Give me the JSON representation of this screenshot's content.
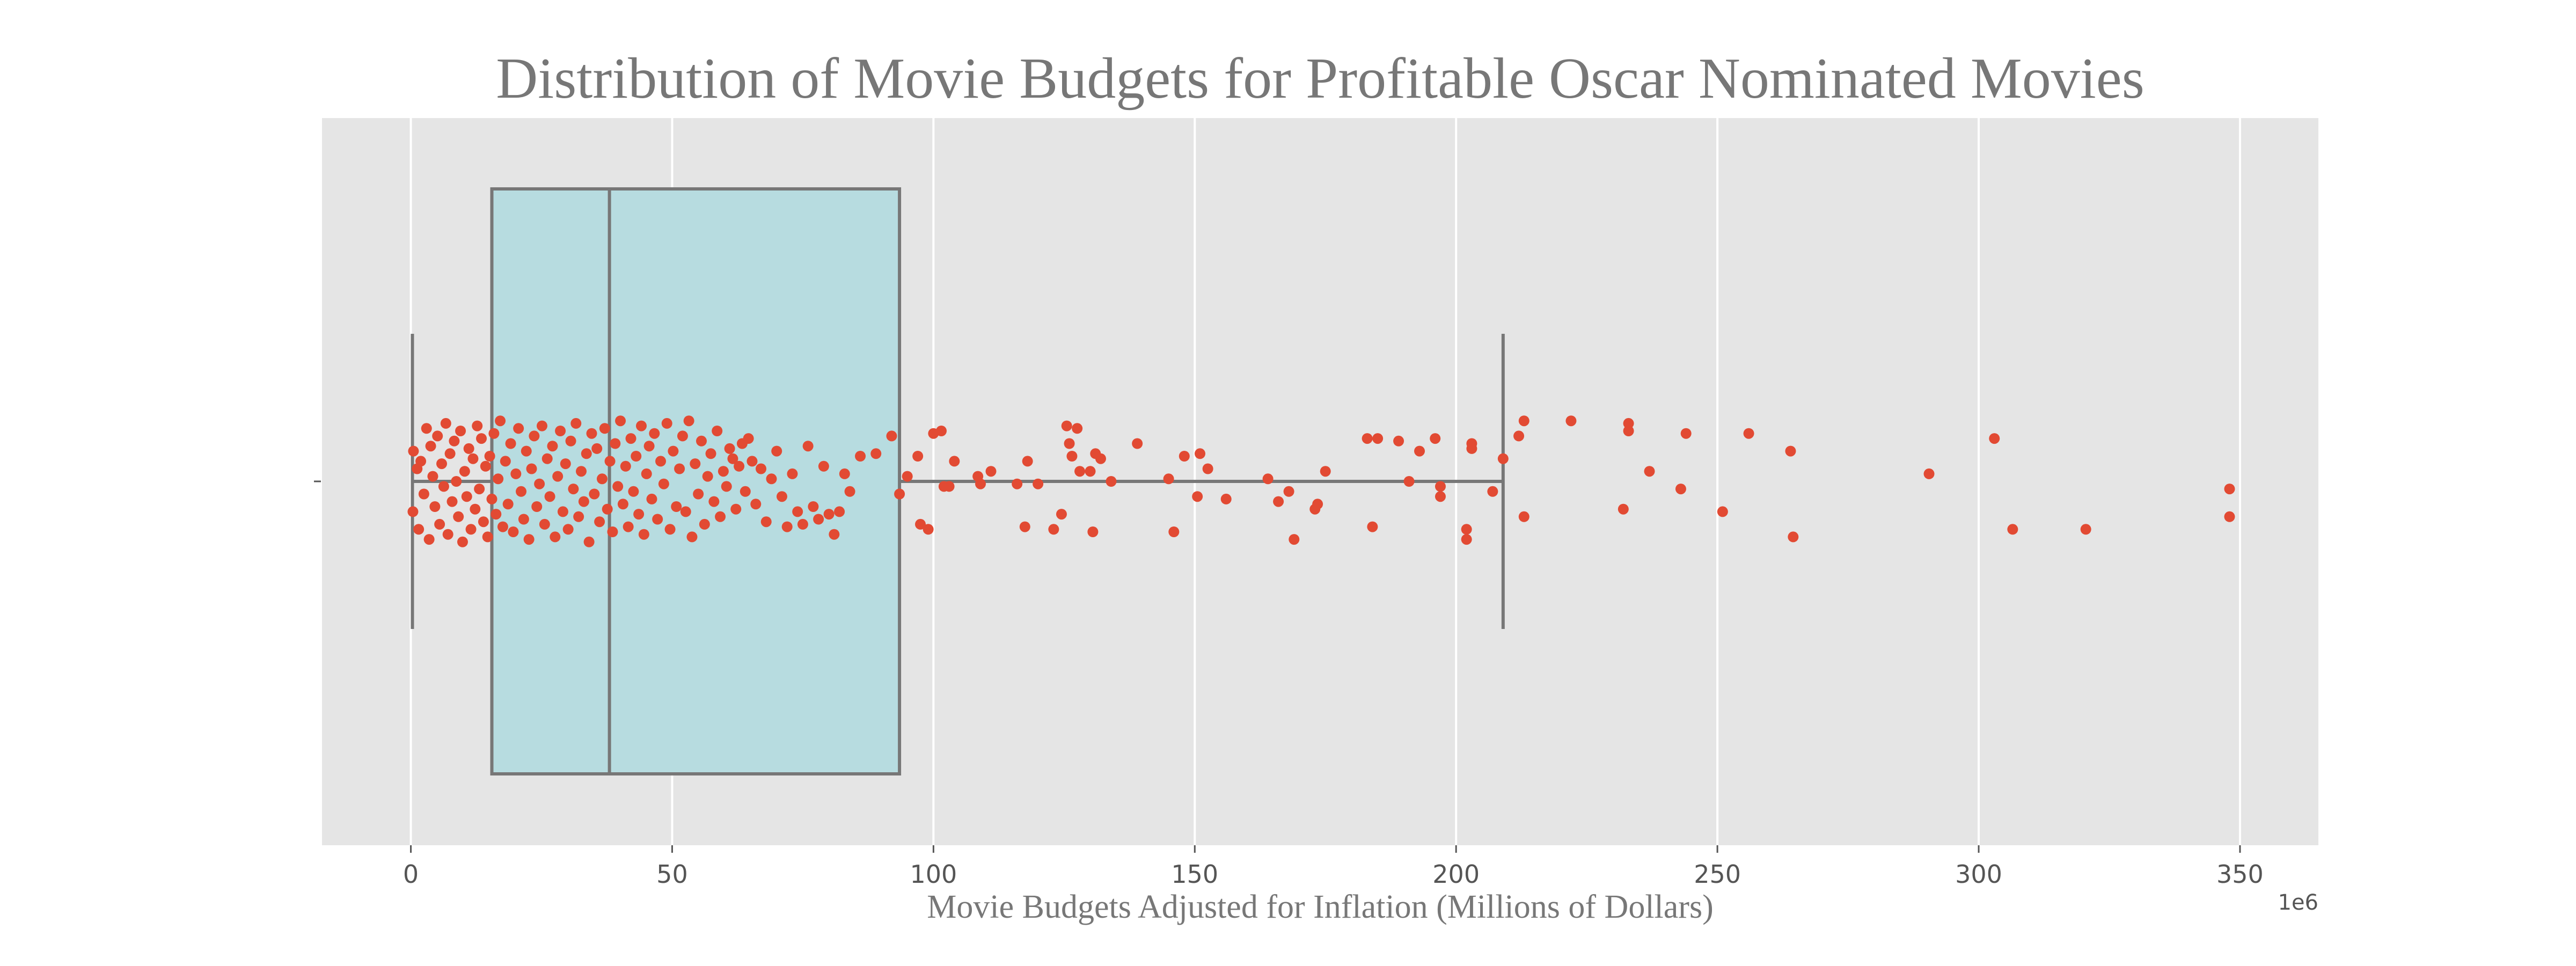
{
  "chart_data": {
    "type": "box",
    "title": "Distribution of Movie Budgets for Profitable Oscar Nominated Movies",
    "xlabel": "Movie Budgets Adjusted for Inflation (Millions of Dollars)",
    "ylabel": "",
    "offset_label": "1e6",
    "xlim": [
      -17,
      365
    ],
    "x_ticks": [
      0,
      50,
      100,
      150,
      200,
      250,
      300,
      350
    ],
    "x_tick_labels": [
      "0",
      "50",
      "100",
      "150",
      "200",
      "250",
      "300",
      "350"
    ],
    "grid": true,
    "box": {
      "whisker_low": 0.3,
      "q1": 15.5,
      "median": 38,
      "q3": 93.5,
      "whisker_high": 209
    },
    "points": [
      [
        0.4,
        -0.12
      ],
      [
        0.5,
        0.12
      ],
      [
        1.2,
        0.05
      ],
      [
        1.5,
        -0.19
      ],
      [
        1.9,
        0.08
      ],
      [
        2.5,
        -0.05
      ],
      [
        3,
        0.21
      ],
      [
        3.5,
        -0.23
      ],
      [
        3.8,
        0.14
      ],
      [
        4.2,
        0.02
      ],
      [
        4.6,
        -0.1
      ],
      [
        5.1,
        0.18
      ],
      [
        5.5,
        -0.17
      ],
      [
        5.9,
        0.07
      ],
      [
        6.3,
        -0.02
      ],
      [
        6.7,
        0.23
      ],
      [
        7.1,
        -0.21
      ],
      [
        7.5,
        0.11
      ],
      [
        7.9,
        -0.08
      ],
      [
        8.3,
        0.16
      ],
      [
        8.7,
        0.0
      ],
      [
        9.1,
        -0.14
      ],
      [
        9.5,
        0.2
      ],
      [
        9.9,
        -0.24
      ],
      [
        10.3,
        0.04
      ],
      [
        10.7,
        -0.06
      ],
      [
        11.1,
        0.13
      ],
      [
        11.5,
        -0.19
      ],
      [
        11.9,
        0.09
      ],
      [
        12.3,
        -0.11
      ],
      [
        12.7,
        0.22
      ],
      [
        13.1,
        -0.03
      ],
      [
        13.5,
        0.17
      ],
      [
        13.9,
        -0.16
      ],
      [
        14.3,
        0.06
      ],
      [
        14.7,
        -0.22
      ],
      [
        15.1,
        0.1
      ],
      [
        15.5,
        -0.07
      ],
      [
        15.9,
        0.19
      ],
      [
        16.3,
        -0.13
      ],
      [
        16.7,
        0.01
      ],
      [
        17.1,
        0.24
      ],
      [
        17.6,
        -0.18
      ],
      [
        18.1,
        0.08
      ],
      [
        18.6,
        -0.09
      ],
      [
        19.1,
        0.15
      ],
      [
        19.6,
        -0.2
      ],
      [
        20.1,
        0.03
      ],
      [
        20.6,
        0.21
      ],
      [
        21.1,
        -0.04
      ],
      [
        21.6,
        -0.15
      ],
      [
        22.1,
        0.12
      ],
      [
        22.6,
        -0.23
      ],
      [
        23.1,
        0.05
      ],
      [
        23.6,
        0.18
      ],
      [
        24.1,
        -0.1
      ],
      [
        24.6,
        -0.01
      ],
      [
        25.1,
        0.22
      ],
      [
        25.6,
        -0.17
      ],
      [
        26.1,
        0.09
      ],
      [
        26.6,
        -0.06
      ],
      [
        27.1,
        0.14
      ],
      [
        27.6,
        -0.22
      ],
      [
        28.1,
        0.02
      ],
      [
        28.6,
        0.2
      ],
      [
        29.1,
        -0.12
      ],
      [
        29.6,
        0.07
      ],
      [
        30.1,
        -0.19
      ],
      [
        30.6,
        0.16
      ],
      [
        31.1,
        -0.03
      ],
      [
        31.6,
        0.23
      ],
      [
        32.1,
        -0.14
      ],
      [
        32.6,
        0.04
      ],
      [
        33.1,
        -0.08
      ],
      [
        33.6,
        0.11
      ],
      [
        34.1,
        -0.24
      ],
      [
        34.6,
        0.19
      ],
      [
        35.1,
        -0.05
      ],
      [
        35.6,
        0.13
      ],
      [
        36.1,
        -0.16
      ],
      [
        36.6,
        0.01
      ],
      [
        37.1,
        0.21
      ],
      [
        37.6,
        -0.11
      ],
      [
        38.1,
        0.08
      ],
      [
        38.6,
        -0.2
      ],
      [
        39.1,
        0.15
      ],
      [
        39.6,
        -0.02
      ],
      [
        40.1,
        0.24
      ],
      [
        40.6,
        -0.09
      ],
      [
        41.1,
        0.06
      ],
      [
        41.6,
        -0.18
      ],
      [
        42.1,
        0.17
      ],
      [
        42.6,
        -0.04
      ],
      [
        43.1,
        0.1
      ],
      [
        43.6,
        -0.13
      ],
      [
        44.1,
        0.22
      ],
      [
        44.6,
        -0.21
      ],
      [
        45.1,
        0.03
      ],
      [
        45.6,
        0.14
      ],
      [
        46.1,
        -0.07
      ],
      [
        46.6,
        0.19
      ],
      [
        47.2,
        -0.15
      ],
      [
        47.8,
        0.08
      ],
      [
        48.4,
        -0.01
      ],
      [
        49.0,
        0.23
      ],
      [
        49.6,
        -0.19
      ],
      [
        50.2,
        0.12
      ],
      [
        50.8,
        -0.1
      ],
      [
        51.4,
        0.05
      ],
      [
        52.0,
        0.18
      ],
      [
        52.6,
        -0.12
      ],
      [
        53.2,
        0.24
      ],
      [
        53.8,
        -0.22
      ],
      [
        54.4,
        0.07
      ],
      [
        55.0,
        -0.05
      ],
      [
        55.6,
        0.16
      ],
      [
        56.2,
        -0.17
      ],
      [
        56.8,
        0.02
      ],
      [
        57.4,
        0.11
      ],
      [
        58.0,
        -0.08
      ],
      [
        58.6,
        0.2
      ],
      [
        59.2,
        -0.14
      ],
      [
        59.8,
        0.04
      ],
      [
        60.4,
        -0.02
      ],
      [
        61.0,
        0.13
      ],
      [
        61.6,
        0.09
      ],
      [
        62.2,
        -0.11
      ],
      [
        62.8,
        0.06
      ],
      [
        63.4,
        0.15
      ],
      [
        64.0,
        -0.04
      ],
      [
        64.6,
        0.17
      ],
      [
        65.3,
        0.08
      ],
      [
        66.0,
        -0.09
      ],
      [
        67.0,
        0.05
      ],
      [
        68.0,
        -0.16
      ],
      [
        69.0,
        0.01
      ],
      [
        70.0,
        0.12
      ],
      [
        71.0,
        -0.06
      ],
      [
        72.0,
        -0.18
      ],
      [
        73.0,
        0.03
      ],
      [
        74.0,
        -0.12
      ],
      [
        75.0,
        -0.17
      ],
      [
        76.0,
        0.14
      ],
      [
        77.0,
        -0.1
      ],
      [
        78.0,
        -0.15
      ],
      [
        79.0,
        0.06
      ],
      [
        80.0,
        -0.13
      ],
      [
        81.0,
        -0.21
      ],
      [
        82.0,
        -0.12
      ],
      [
        83.0,
        0.03
      ],
      [
        84.0,
        -0.04
      ],
      [
        86.0,
        0.1
      ],
      [
        89.0,
        0.11
      ],
      [
        92.0,
        0.18
      ],
      [
        93.5,
        -0.05
      ],
      [
        95.0,
        0.02
      ],
      [
        97.0,
        0.1
      ],
      [
        97.5,
        -0.17
      ],
      [
        99.0,
        -0.19
      ],
      [
        100.0,
        0.19
      ],
      [
        101.5,
        0.2
      ],
      [
        102.0,
        -0.02
      ],
      [
        103.0,
        -0.02
      ],
      [
        104.0,
        0.08
      ],
      [
        108.5,
        0.02
      ],
      [
        109.0,
        -0.01
      ],
      [
        111.0,
        0.04
      ],
      [
        116.0,
        -0.01
      ],
      [
        117.5,
        -0.18
      ],
      [
        118.0,
        0.08
      ],
      [
        120.0,
        -0.01
      ],
      [
        123.0,
        -0.19
      ],
      [
        124.5,
        -0.13
      ],
      [
        125.5,
        0.22
      ],
      [
        126.0,
        0.15
      ],
      [
        126.5,
        0.1
      ],
      [
        127.5,
        0.21
      ],
      [
        128.0,
        0.04
      ],
      [
        130.0,
        0.04
      ],
      [
        130.5,
        -0.2
      ],
      [
        131.0,
        0.11
      ],
      [
        132.0,
        0.09
      ],
      [
        134.0,
        0.0
      ],
      [
        139.0,
        0.15
      ],
      [
        145.0,
        0.01
      ],
      [
        146.0,
        -0.2
      ],
      [
        148.0,
        0.1
      ],
      [
        150.5,
        -0.06
      ],
      [
        151.0,
        0.11
      ],
      [
        152.5,
        0.05
      ],
      [
        156.0,
        -0.07
      ],
      [
        164.0,
        0.01
      ],
      [
        166.0,
        -0.08
      ],
      [
        168.0,
        -0.04
      ],
      [
        169.0,
        -0.23
      ],
      [
        173.0,
        -0.11
      ],
      [
        173.5,
        -0.09
      ],
      [
        175.0,
        0.04
      ],
      [
        183.0,
        0.17
      ],
      [
        184.0,
        -0.18
      ],
      [
        185.0,
        0.17
      ],
      [
        189.0,
        0.16
      ],
      [
        191.0,
        0.0
      ],
      [
        193.0,
        0.12
      ],
      [
        196.0,
        0.17
      ],
      [
        197.0,
        -0.02
      ],
      [
        197.0,
        -0.06
      ],
      [
        202.0,
        -0.23
      ],
      [
        202.0,
        -0.19
      ],
      [
        203.0,
        0.13
      ],
      [
        203.0,
        0.15
      ],
      [
        207.0,
        -0.04
      ],
      [
        209.0,
        0.09
      ],
      [
        212.0,
        0.18
      ],
      [
        213.0,
        -0.14
      ],
      [
        213.0,
        0.24
      ],
      [
        222.0,
        0.24
      ],
      [
        232.0,
        -0.11
      ],
      [
        233.0,
        0.23
      ],
      [
        233.0,
        0.2
      ],
      [
        237.0,
        0.04
      ],
      [
        243.0,
        -0.03
      ],
      [
        244.0,
        0.19
      ],
      [
        251.0,
        -0.12
      ],
      [
        256.0,
        0.19
      ],
      [
        264.0,
        0.12
      ],
      [
        264.5,
        -0.22
      ],
      [
        290.5,
        0.03
      ],
      [
        303.0,
        0.17
      ],
      [
        306.5,
        -0.19
      ],
      [
        320.5,
        -0.19
      ],
      [
        348.0,
        -0.03
      ],
      [
        348.0,
        -0.14
      ]
    ],
    "colors": {
      "plot_bg": "#e5e5e5",
      "grid": "#ffffff",
      "box_fill": "#b7dce0",
      "box_edge": "#777777",
      "points": "#e24a33",
      "text": "#777777"
    }
  }
}
